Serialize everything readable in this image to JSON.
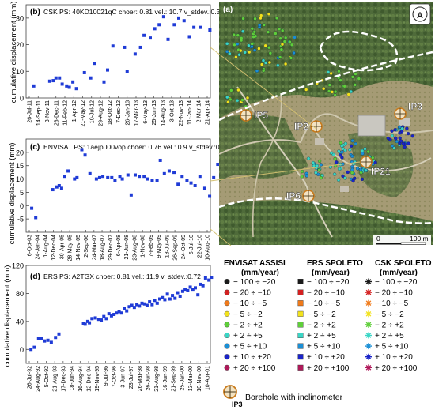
{
  "figure": {
    "ylabel": "cumulative displacement (mm)"
  },
  "chart_data": [
    {
      "type": "scatter",
      "panel_label": "(b)",
      "title": "CSK PS: 40KD10021qC choer: 0.81 vel.: 10.7 v_stdev.:0.3",
      "ylabel": "cumulative displacement (mm)",
      "xlabel": "",
      "ylim": [
        0,
        35
      ],
      "yticks": [
        0,
        10,
        20,
        30
      ],
      "x_tick_labels": [
        "26-Jul-11",
        "14-Sep-11",
        "3-Nov-11",
        "23-Dec-11",
        "11-Feb-12",
        "1-Apr-12",
        "21-May-12",
        "10-Jul-12",
        "29-Aug-12",
        "18-Oct-12",
        "7-Dec-12",
        "26-Jan-13",
        "17-Mar-13",
        "6-May-13",
        "25-Jun-13",
        "14-Aug-13",
        "3-Oct-13",
        "22-Nov-13",
        "11-Jan-14",
        "2-Mar-14",
        "21-Apr-14"
      ],
      "grid": false,
      "marker_color": "#1f3bd6",
      "series": [
        {
          "x": [
            0.5,
            2.3,
            2.7,
            3.0,
            3.4,
            3.7,
            4.2,
            4.5,
            4.9,
            5.3,
            6.2,
            6.9,
            7.3,
            8.4,
            8.8,
            9.4,
            10.7,
            11.0,
            11.9,
            12.5,
            12.9,
            13.6,
            14.1,
            14.6,
            15.1,
            15.6,
            16.3,
            16.8,
            17.4,
            18.0,
            18.5,
            19.2,
            20.3
          ],
          "y": [
            4.5,
            6.3,
            6.5,
            7.5,
            7.5,
            5.2,
            4.5,
            4.0,
            6.0,
            3.5,
            9.5,
            7.5,
            13.0,
            6.0,
            10.5,
            19.5,
            19.0,
            10.0,
            16.5,
            19.0,
            23.5,
            22.5,
            26.0,
            27.5,
            30.5,
            22.0,
            27.5,
            30.0,
            29.0,
            23.0,
            26.5,
            26.5,
            25.5
          ]
        }
      ]
    },
    {
      "type": "scatter",
      "panel_label": "(c)",
      "title": "ENVISAT PS: 1aejp000vop choer: 0.76 vel.: 0.9 v_stdev.:0.5",
      "ylabel": "cumulative displacement (mm)",
      "xlabel": "",
      "ylim": [
        -10,
        25
      ],
      "yticks": [
        -5,
        0,
        5,
        10,
        15,
        20
      ],
      "x_tick_labels": [
        "6-Oct-03",
        "24-Jan-04",
        "1-Aug-04",
        "12-Dec-04",
        "30-Apr-05",
        "28-May-05",
        "14-Nov-05",
        "2-Sep-06",
        "24-Mar-07",
        "18-Aug-07",
        "29-Dec-07",
        "6-Apr-08",
        "21-Jun-08",
        "23-Aug-08",
        "1-Nov-08",
        "7-Feb-09",
        "9-May-09",
        "18-Jul-09",
        "26-Sep-09",
        "24-Oct-09",
        "6-Jul-10",
        "22-Jul-10",
        "10-Aug-10"
      ],
      "grid": false,
      "marker_color": "#1f3bd6",
      "series": [
        {
          "x": [
            0.3,
            0.8,
            2.9,
            3.4,
            3.7,
            4.0,
            4.4,
            4.8,
            5.6,
            5.9,
            6.5,
            6.9,
            7.5,
            8.3,
            8.7,
            9.1,
            9.7,
            10.2,
            10.6,
            11.2,
            11.5,
            12.2,
            12.6,
            13.1,
            13.6,
            14.2,
            14.6,
            15.2,
            15.8,
            16.2,
            16.7,
            17.3,
            17.9,
            18.4,
            18.9,
            19.5,
            20.0,
            20.5,
            21.1,
            21.7,
            22.3,
            22.8,
            23.3
          ],
          "y": [
            -1.0,
            -4.5,
            6.0,
            7.0,
            7.5,
            6.5,
            11.0,
            13.0,
            10.0,
            10.5,
            21.0,
            19.0,
            12.0,
            10.0,
            10.5,
            11.0,
            10.5,
            10.5,
            9.5,
            11.0,
            10.0,
            11.5,
            4.0,
            11.5,
            11.0,
            11.0,
            10.0,
            9.5,
            9.5,
            17.0,
            12.0,
            13.0,
            12.5,
            8.0,
            11.0,
            9.5,
            8.5,
            7.5,
            11.0,
            6.5,
            3.5,
            10.5,
            15.5
          ]
        }
      ]
    },
    {
      "type": "scatter",
      "panel_label": "(d)",
      "title": "ERS PS: A2TGX choer: 0.81 vel.: 11.9 v_stdev.:0.72",
      "ylabel": "cumulative displacement (mm)",
      "xlabel": "",
      "ylim": [
        -20,
        120
      ],
      "yticks": [
        0,
        40,
        80,
        120
      ],
      "x_tick_labels": [
        "26-Jul-92",
        "24-Aug-92",
        "5-Oct-92",
        "21-Aug-93",
        "17-Dec-93",
        "18-Jun-94",
        "16-Aug-94",
        "12-Dec-94",
        "19-Nov-95",
        "9-Jul-96",
        "7-Oct-96",
        "3-Jun-97",
        "23-Jul-97",
        "26-Mar-98",
        "26-Jun-98",
        "21-Aug-98",
        "16-Jun-99",
        "21-Sep-99",
        "25-Jan-00",
        "13-Mar-00",
        "10-Nov-00",
        "10-Apr-01"
      ],
      "grid": false,
      "marker_color": "#1f3bd6",
      "series": [
        {
          "x": [
            0.2,
            0.6,
            1.1,
            1.4,
            1.8,
            2.2,
            2.6,
            3.1,
            3.5,
            6.4,
            6.6,
            6.9,
            7.1,
            7.4,
            7.8,
            8.2,
            8.5,
            8.8,
            9.1,
            9.4,
            9.7,
            10.0,
            10.3,
            10.6,
            10.9,
            11.2,
            11.5,
            11.8,
            12.1,
            12.4,
            12.7,
            13.0,
            13.3,
            13.6,
            13.9,
            14.2,
            14.5,
            14.8,
            15.1,
            15.4,
            15.7,
            16.0,
            16.3,
            16.6,
            16.9,
            17.2,
            17.5,
            17.8,
            18.1,
            18.4,
            18.7,
            19.0,
            19.3,
            19.6,
            19.9,
            20.2,
            20.5,
            20.8,
            21.2,
            21.5
          ],
          "y": [
            0,
            3,
            15,
            16,
            12,
            13,
            10,
            17,
            22,
            37,
            36,
            40,
            38,
            44,
            45,
            43,
            42,
            47,
            44,
            51,
            48,
            50,
            52,
            54,
            52,
            59,
            55,
            61,
            63,
            60,
            64,
            62,
            66,
            65,
            63,
            68,
            64,
            70,
            66,
            72,
            74,
            71,
            79,
            72,
            77,
            73,
            81,
            76,
            83,
            86,
            84,
            89,
            86,
            88,
            78,
            93,
            91,
            102,
            99,
            103
          ]
        }
      ]
    }
  ],
  "map": {
    "panel_label": "(a)",
    "north_symbol": "A",
    "boreholes": [
      {
        "id": "IP5",
        "label": "IP5"
      },
      {
        "id": "IP2",
        "label": "IP2"
      },
      {
        "id": "IP3",
        "label": "IP3"
      },
      {
        "id": "IP21",
        "label": "IP21"
      },
      {
        "id": "IP6",
        "label": "IP6"
      }
    ],
    "scale_bar": {
      "zero": "0",
      "end": "100 m"
    }
  },
  "legend": {
    "columns": [
      {
        "title_line1": "ENVISAT ASSISI",
        "title_line2": "(mm/year)",
        "marker": "circle"
      },
      {
        "title_line1": "ERS SPOLETO",
        "title_line2": "(mm/year)",
        "marker": "square"
      },
      {
        "title_line1": "CSK SPOLETO",
        "title_line2": "(mm/year)",
        "marker": "star"
      }
    ],
    "classes": [
      {
        "label": "− 100 ÷ −20",
        "color": "#1a1a1a"
      },
      {
        "label": "− 20 ÷ −10",
        "color": "#d42020"
      },
      {
        "label": "− 10 ÷ −5",
        "color": "#f07a1a"
      },
      {
        "label": "− 5 ÷ −2",
        "color": "#f2e21c"
      },
      {
        "label": "− 2 ÷ +2",
        "color": "#5fcf3a"
      },
      {
        "label": "+ 2 ÷ +5",
        "color": "#3ad6c6"
      },
      {
        "label": "+ 5 ÷ +10",
        "color": "#1a8fd6"
      },
      {
        "label": "+ 10 ÷ +20",
        "color": "#1a24c8"
      },
      {
        "label": "+ 20 ÷ +100",
        "color": "#b0185a"
      }
    ],
    "borehole_label": "IP3",
    "borehole_caption": "Borehole with inclinometer"
  }
}
